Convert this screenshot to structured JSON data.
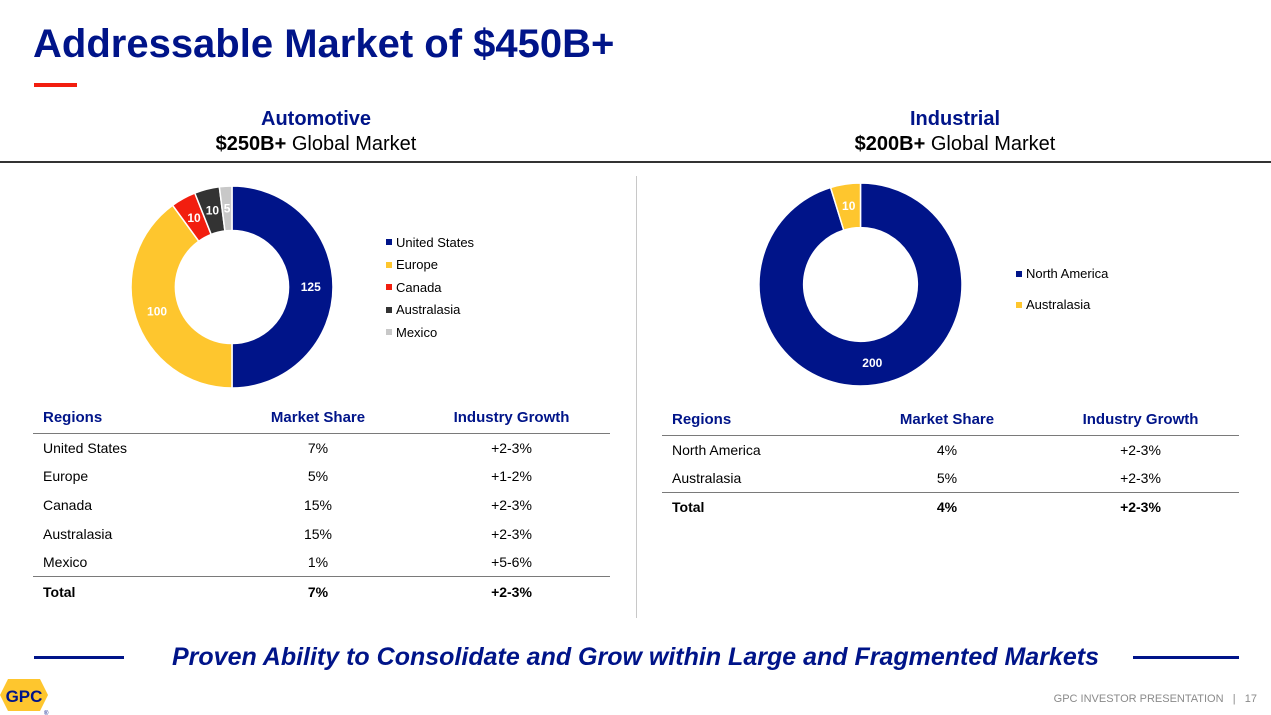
{
  "slide": {
    "title": "Addressable Market of $450B+",
    "tagline": "Proven Ability to Consolidate and Grow within Large and Fragmented Markets",
    "footer": "GPC INVESTOR PRESENTATION   |   17",
    "logo_text": "GPC",
    "logo_mark": "®"
  },
  "colors": {
    "brand_blue": "#001489",
    "accent_red": "#f21e0f",
    "yellow": "#fec62e",
    "dark_gray": "#333333",
    "light_gray": "#c8c8c8"
  },
  "sections": [
    {
      "name": "Automotive",
      "market_bold": "$250B+",
      "market_rest": " Global Market",
      "table": {
        "headers": [
          "Regions",
          "Market Share",
          "Industry Growth"
        ],
        "rows": [
          [
            "United States",
            "7%",
            "+2-3%"
          ],
          [
            "Europe",
            "5%",
            "+1-2%"
          ],
          [
            "Canada",
            "15%",
            "+2-3%"
          ],
          [
            "Australasia",
            "15%",
            "+2-3%"
          ],
          [
            "Mexico",
            "1%",
            "+5-6%"
          ]
        ],
        "total": [
          "Total",
          "7%",
          "+2-3%"
        ]
      }
    },
    {
      "name": "Industrial",
      "market_bold": "$200B+",
      "market_rest": " Global Market",
      "table": {
        "headers": [
          "Regions",
          "Market Share",
          "Industry Growth"
        ],
        "rows": [
          [
            "North America",
            "4%",
            "+2-3%"
          ],
          [
            "Australasia",
            "5%",
            "+2-3%"
          ]
        ],
        "total": [
          "Total",
          "4%",
          "+2-3%"
        ]
      }
    }
  ],
  "chart_data": [
    {
      "type": "pie",
      "title": "Automotive",
      "unit": "$B",
      "donut": true,
      "legend_position": "right",
      "categories": [
        "United States",
        "Europe",
        "Canada",
        "Australasia",
        "Mexico"
      ],
      "values": [
        125,
        100,
        10,
        10,
        5
      ],
      "colors": [
        "#001489",
        "#fec62e",
        "#f21e0f",
        "#333333",
        "#c8c8c8"
      ],
      "data_labels": [
        "125",
        "100",
        "10",
        "10",
        "5"
      ]
    },
    {
      "type": "pie",
      "title": "Industrial",
      "unit": "$B",
      "donut": true,
      "legend_position": "right",
      "categories": [
        "North America",
        "Australasia"
      ],
      "values": [
        200,
        10
      ],
      "colors": [
        "#001489",
        "#fec62e"
      ],
      "data_labels": [
        "200",
        "10"
      ]
    }
  ]
}
